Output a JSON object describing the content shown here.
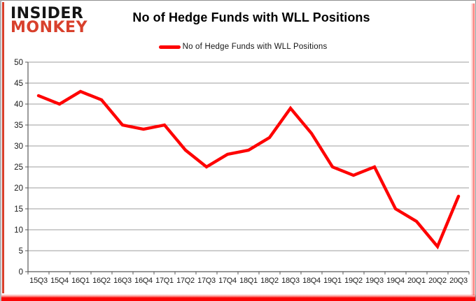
{
  "logo": {
    "line1": "INSIDER",
    "line2": "MONKEY"
  },
  "header": {
    "title": "No of Hedge Funds with WLL Positions"
  },
  "legend": {
    "label": "No of Hedge Funds with WLL Positions"
  },
  "colors": {
    "line_red": "#fe0000",
    "logo_red": "#d8402c",
    "logo_black": "#151515",
    "grid": "#9e9e9e",
    "axis": "#5a5a5a",
    "tick_label": "#1a1a1a"
  },
  "chart_data": {
    "type": "line",
    "title": "No of Hedge Funds with WLL Positions",
    "xlabel": "",
    "ylabel": "",
    "ylim": [
      0,
      50
    ],
    "ytick_step": 5,
    "grid": true,
    "legend_position": "top-center",
    "categories": [
      "15Q3",
      "15Q4",
      "16Q1",
      "16Q2",
      "16Q3",
      "16Q4",
      "17Q1",
      "17Q2",
      "17Q3",
      "17Q4",
      "18Q1",
      "18Q2",
      "18Q3",
      "18Q4",
      "19Q1",
      "19Q2",
      "19Q3",
      "19Q4",
      "20Q1",
      "20Q2",
      "20Q3"
    ],
    "series": [
      {
        "name": "No of Hedge Funds with WLL Positions",
        "values": [
          42,
          40,
          43,
          41,
          35,
          34,
          35,
          29,
          25,
          28,
          29,
          32,
          39,
          33,
          25,
          23,
          25,
          15,
          12,
          6,
          18
        ]
      }
    ]
  }
}
